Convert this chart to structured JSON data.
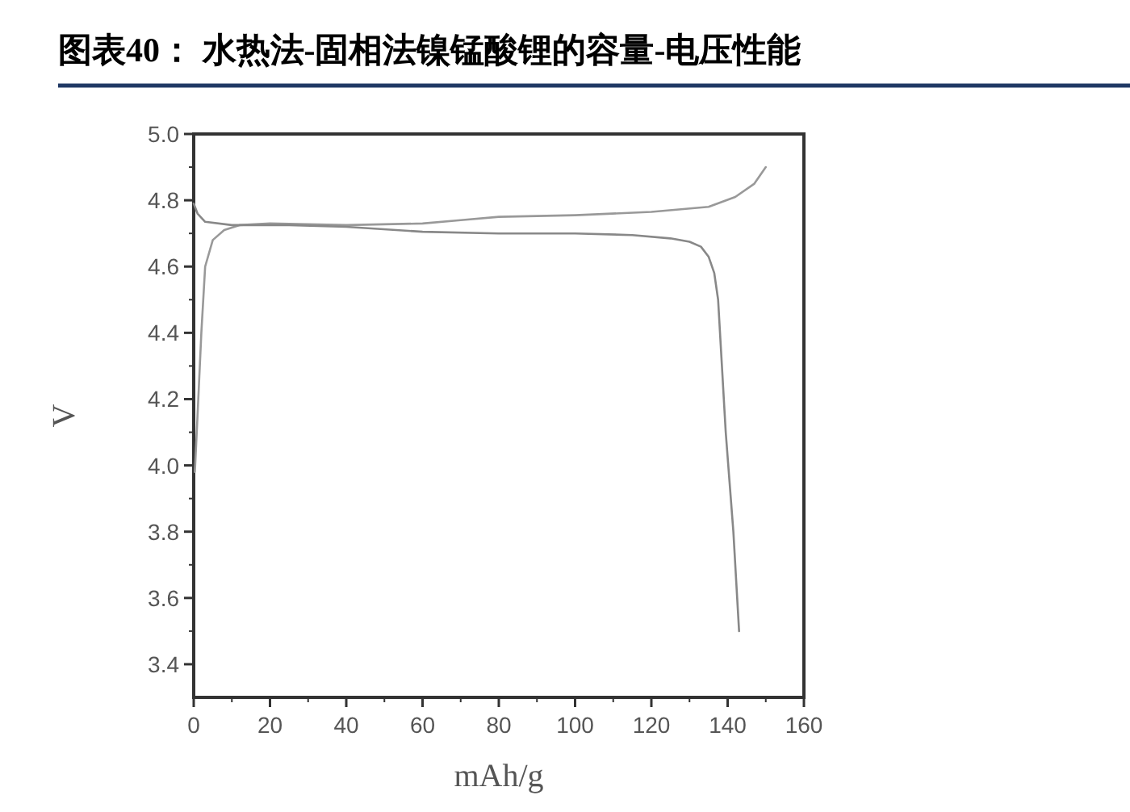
{
  "chart_data": {
    "type": "line",
    "title": "图表40：   水热法-固相法镍锰酸锂的容量-电压性能",
    "xlabel": "mAh/g",
    "ylabel": "V",
    "xlim": [
      0,
      160
    ],
    "xticks": [
      0,
      20,
      40,
      60,
      80,
      100,
      120,
      140,
      160
    ],
    "ylim": [
      3.3,
      5.0
    ],
    "yticks": [
      3.4,
      3.6,
      3.8,
      {
        "value": 4.0,
        "label": "4.0"
      },
      4.2,
      4.4,
      4.6,
      4.8,
      {
        "value": 5.0,
        "label": "5.0"
      }
    ],
    "grid": false,
    "marker": "none",
    "line_style": "solid",
    "series": [
      {
        "color": "#999999",
        "x": [
          0.3,
          1,
          2,
          3,
          5,
          8,
          12,
          20,
          40,
          60,
          70,
          80,
          100,
          120,
          135,
          142,
          147,
          150
        ],
        "values": [
          3.98,
          4.15,
          4.4,
          4.6,
          4.68,
          4.71,
          4.725,
          4.73,
          4.725,
          4.73,
          4.74,
          4.75,
          4.755,
          4.765,
          4.78,
          4.81,
          4.85,
          4.9
        ]
      },
      {
        "color": "#888888",
        "x": [
          0,
          1,
          3,
          10,
          25,
          40,
          60,
          80,
          100,
          115,
          125,
          130,
          133,
          135,
          136.5,
          137.5,
          138.5,
          139.5,
          140.5,
          141.5,
          142.5,
          143
        ],
        "values": [
          4.79,
          4.76,
          4.735,
          4.725,
          4.725,
          4.72,
          4.705,
          4.7,
          4.7,
          4.695,
          4.685,
          4.675,
          4.66,
          4.63,
          4.58,
          4.5,
          4.3,
          4.1,
          3.95,
          3.8,
          3.6,
          3.5
        ]
      }
    ]
  }
}
